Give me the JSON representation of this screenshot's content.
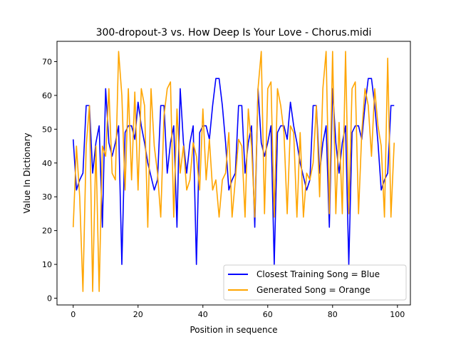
{
  "chart_data": {
    "type": "line",
    "title": "300-dropout-3 vs. How Deep Is Your Love - Chorus.midi",
    "xlabel": "Position in sequence",
    "ylabel": "Value In Dictionary",
    "xlim": [
      -5,
      104
    ],
    "ylim": [
      -2,
      76
    ],
    "xticks": [
      0,
      20,
      40,
      60,
      80,
      100
    ],
    "yticks": [
      0,
      10,
      20,
      30,
      40,
      50,
      60,
      70
    ],
    "legend_position": "lower right",
    "grid": false,
    "series": [
      {
        "name": "Closest Training Song = Blue",
        "color": "#0000ff",
        "x": [
          0,
          1,
          2,
          3,
          4,
          5,
          6,
          7,
          8,
          9,
          10,
          11,
          12,
          13,
          14,
          15,
          16,
          17,
          18,
          19,
          20,
          21,
          22,
          23,
          24,
          25,
          26,
          27,
          28,
          29,
          30,
          31,
          32,
          33,
          34,
          35,
          36,
          37,
          38,
          39,
          40,
          41,
          42,
          43,
          44,
          45,
          46,
          47,
          48,
          49,
          50,
          51,
          52,
          53,
          54,
          55,
          56,
          57,
          58,
          59,
          60,
          61,
          62,
          63,
          64,
          65,
          66,
          67,
          68,
          69,
          70,
          71,
          72,
          73,
          74,
          75,
          76,
          77,
          78,
          79,
          80,
          81,
          82,
          83,
          84,
          85,
          86,
          87,
          88,
          89,
          90,
          91,
          92,
          93,
          94,
          95,
          96,
          97,
          98,
          99
        ],
        "values": [
          47,
          32,
          35,
          37,
          57,
          57,
          37,
          46,
          51,
          21,
          62,
          46,
          42,
          46,
          51,
          10,
          49,
          51,
          51,
          47,
          58,
          51,
          46,
          40,
          36,
          32,
          35,
          57,
          57,
          37,
          46,
          51,
          21,
          62,
          46,
          37,
          46,
          51,
          10,
          49,
          51,
          51,
          47,
          57,
          65,
          65,
          57,
          46,
          32,
          35,
          37,
          57,
          57,
          37,
          46,
          51,
          21,
          62,
          46,
          42,
          46,
          51,
          10,
          49,
          51,
          51,
          47,
          58,
          51,
          46,
          40,
          36,
          32,
          35,
          57,
          57,
          37,
          46,
          51,
          21,
          62,
          46,
          37,
          46,
          51,
          10,
          49,
          51,
          51,
          47,
          57,
          65,
          65,
          57,
          46,
          32,
          35,
          37,
          57,
          57
        ]
      },
      {
        "name": "Generated Song = Orange",
        "color": "#ffa500",
        "x": [
          0,
          1,
          2,
          3,
          4,
          5,
          6,
          7,
          8,
          9,
          10,
          11,
          12,
          13,
          14,
          15,
          16,
          17,
          18,
          19,
          20,
          21,
          22,
          23,
          24,
          25,
          26,
          27,
          28,
          29,
          30,
          31,
          32,
          33,
          34,
          35,
          36,
          37,
          38,
          39,
          40,
          41,
          42,
          43,
          44,
          45,
          46,
          47,
          48,
          49,
          50,
          51,
          52,
          53,
          54,
          55,
          56,
          57,
          58,
          59,
          60,
          61,
          62,
          63,
          64,
          65,
          66,
          67,
          68,
          69,
          70,
          71,
          72,
          73,
          74,
          75,
          76,
          77,
          78,
          79,
          80,
          81,
          82,
          83,
          84,
          85,
          86,
          87,
          88,
          89,
          90,
          91,
          92,
          93,
          94,
          95,
          96,
          97,
          98,
          99
        ],
        "values": [
          21,
          45,
          30,
          2,
          45,
          57,
          2,
          45,
          2,
          45,
          42,
          62,
          37,
          35,
          73,
          60,
          32,
          62,
          35,
          61,
          32,
          62,
          57,
          21,
          62,
          45,
          37,
          24,
          54,
          62,
          64,
          24,
          56,
          37,
          45,
          32,
          35,
          46,
          42,
          32,
          56,
          35,
          47,
          32,
          35,
          24,
          35,
          37,
          49,
          24,
          35,
          47,
          45,
          24,
          56,
          45,
          24,
          62,
          73,
          25,
          62,
          64,
          24,
          62,
          57,
          49,
          25,
          51,
          49,
          24,
          49,
          24,
          37,
          35,
          40,
          57,
          30,
          62,
          73,
          25,
          73,
          25,
          52,
          25,
          73,
          25,
          62,
          64,
          25,
          49,
          62,
          57,
          42,
          62,
          51,
          45,
          24,
          71,
          24,
          46
        ]
      }
    ]
  }
}
